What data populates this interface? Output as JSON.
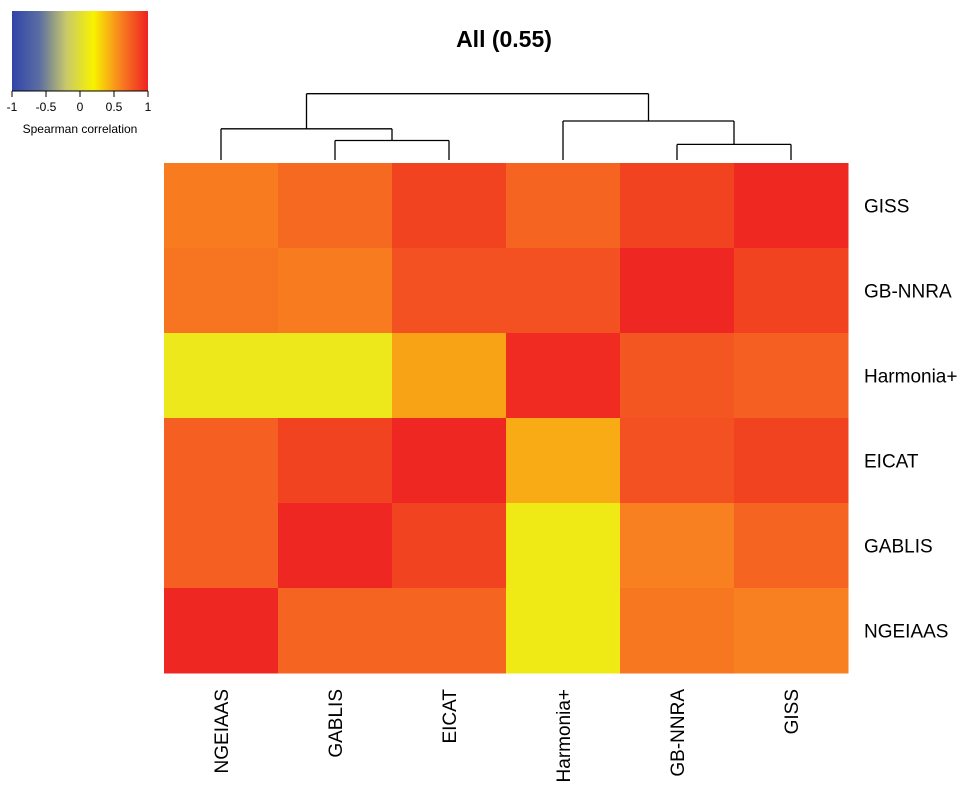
{
  "chart_data": {
    "type": "heatmap",
    "title": "All (0.55)",
    "columns": [
      "NGEIAAS",
      "GABLIS",
      "EICAT",
      "Harmonia+",
      "GB-NNRA",
      "GISS"
    ],
    "rows": [
      "GISS",
      "GB-NNRA",
      "Harmonia+",
      "EICAT",
      "GABLIS",
      "NGEIAAS"
    ],
    "values": [
      [
        0.62,
        0.7,
        0.86,
        0.72,
        0.86,
        0.97
      ],
      [
        0.65,
        0.62,
        0.8,
        0.8,
        0.98,
        0.86
      ],
      [
        0.1,
        0.1,
        0.48,
        0.96,
        0.78,
        0.74
      ],
      [
        0.74,
        0.86,
        0.98,
        0.45,
        0.8,
        0.86
      ],
      [
        0.74,
        0.98,
        0.86,
        0.12,
        0.6,
        0.72
      ],
      [
        0.98,
        0.72,
        0.72,
        0.12,
        0.64,
        0.6
      ]
    ],
    "color_scale": {
      "min": -1,
      "max": 1,
      "stops": [
        "#3044a8",
        "#5b6da3",
        "#c9c96a",
        "#f8f200",
        "#f88020",
        "#ee2222"
      ]
    },
    "legend": {
      "title": "Spearman correlation",
      "ticks": [
        "-1",
        "-0.5",
        "0",
        "0.5",
        "1"
      ],
      "placement": "top-left"
    },
    "dendrogram": {
      "column_order": [
        "NGEIAAS",
        "GABLIS",
        "EICAT",
        "Harmonia+",
        "GB-NNRA",
        "GISS"
      ],
      "merges": [
        {
          "left": "GABLIS",
          "right": "EICAT",
          "height": 0.25
        },
        {
          "left": "NGEIAAS",
          "right": "m0",
          "height": 0.4
        },
        {
          "left": "GB-NNRA",
          "right": "GISS",
          "height": 0.2
        },
        {
          "left": "Harmonia+",
          "right": "m2",
          "height": 0.5
        },
        {
          "left": "m1",
          "right": "m3",
          "height": 0.85
        }
      ]
    }
  }
}
